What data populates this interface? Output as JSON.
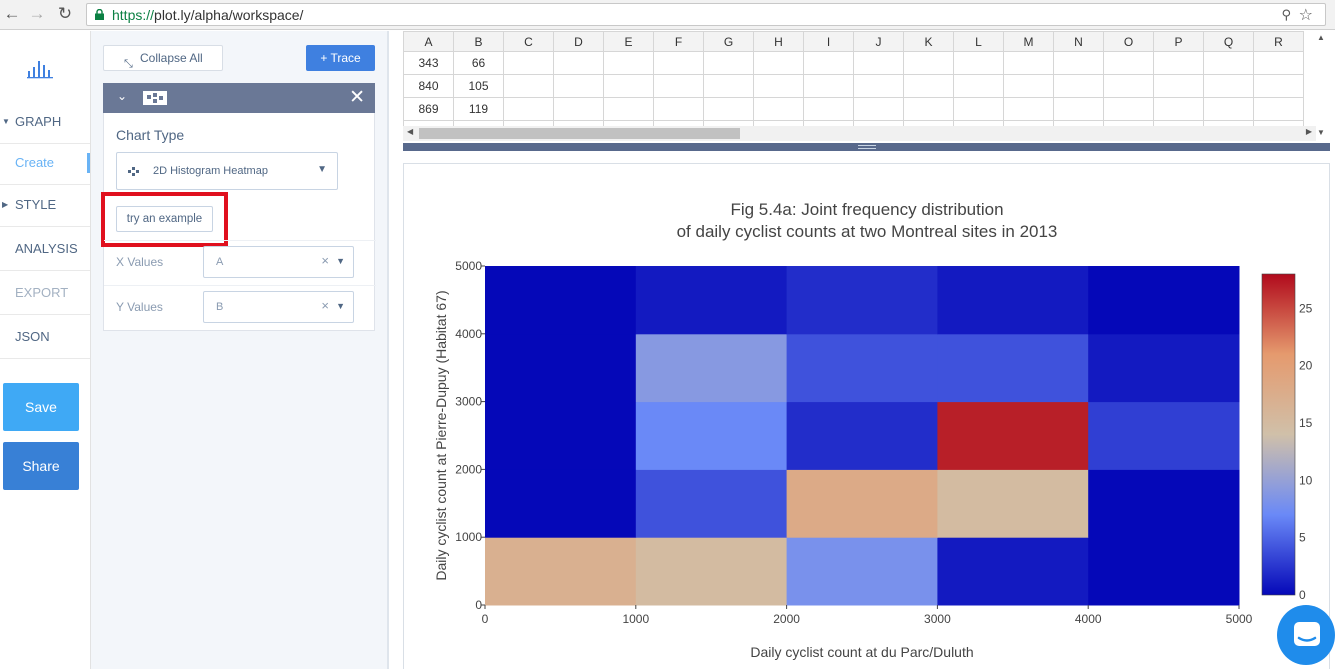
{
  "browser": {
    "url_scheme": "https://",
    "url_rest": "plot.ly/alpha/workspace/",
    "back_icon": "back-arrow-icon",
    "forward_icon": "forward-arrow-icon",
    "reload_icon": "reload-icon"
  },
  "sidebar": {
    "items": [
      {
        "label": "GRAPH",
        "name": "nav-graph"
      },
      {
        "label": "Create",
        "name": "nav-create"
      },
      {
        "label": "STYLE",
        "name": "nav-style"
      },
      {
        "label": "ANALYSIS",
        "name": "nav-analysis"
      },
      {
        "label": "EXPORT",
        "name": "nav-export"
      },
      {
        "label": "JSON",
        "name": "nav-json"
      }
    ],
    "save_label": "Save",
    "share_label": "Share"
  },
  "panel": {
    "collapse_all_label": "Collapse All",
    "add_trace_label": "+ Trace",
    "chart_type_label": "Chart Type",
    "chart_type_value": "2D Histogram Heatmap",
    "try_example_label": "try an example",
    "x_values_label": "X Values",
    "x_values_value": "A",
    "y_values_label": "Y Values",
    "y_values_value": "B"
  },
  "grid": {
    "columns": [
      "A",
      "B",
      "C",
      "D",
      "E",
      "F",
      "G",
      "H",
      "I",
      "J",
      "K",
      "L",
      "M",
      "N",
      "O",
      "P",
      "Q",
      "R"
    ],
    "rows": [
      [
        "343",
        "66"
      ],
      [
        "840",
        "105"
      ],
      [
        "869",
        "119"
      ],
      [
        "",
        ""
      ]
    ]
  },
  "chart_data": {
    "type": "heatmap",
    "title_line1": "Fig 5.4a: Joint frequency distribution",
    "title_line2": "of daily cyclist counts at two Montreal sites in 2013",
    "xlabel": "Daily cyclist count at du Parc/Duluth",
    "ylabel": "Daily cyclist count at Pierre-Dupuy (Habitat 67)",
    "x_bins": [
      0,
      1000,
      2000,
      3000,
      4000,
      5000
    ],
    "y_bins": [
      0,
      1000,
      2000,
      3000,
      4000,
      5000
    ],
    "x_ticks": [
      "0",
      "1000",
      "2000",
      "3000",
      "4000",
      "5000"
    ],
    "y_ticks": [
      "0",
      "1000",
      "2000",
      "3000",
      "4000",
      "5000"
    ],
    "z": [
      [
        17,
        15,
        8,
        1,
        0
      ],
      [
        0,
        4,
        18,
        15,
        0
      ],
      [
        0,
        7,
        2,
        27,
        3
      ],
      [
        0,
        9,
        4,
        4,
        1
      ],
      [
        0,
        1,
        2,
        1,
        0
      ]
    ],
    "zmin": 0,
    "zmax": 28,
    "colorbar_ticks": [
      0,
      5,
      10,
      15,
      20,
      25
    ],
    "colorscale": [
      "#0508b8",
      "#6a89f7",
      "#d0c0a9",
      "#e59a6e",
      "#b10a1c"
    ]
  }
}
